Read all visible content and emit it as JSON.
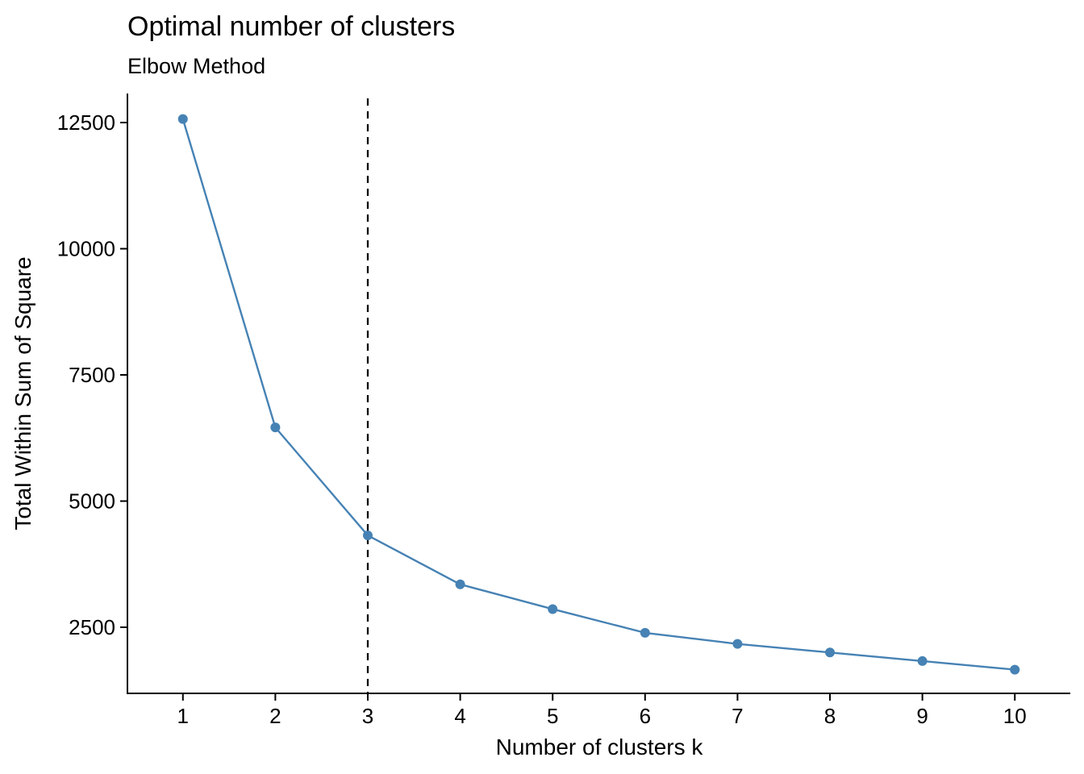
{
  "chart_data": {
    "type": "line",
    "title": "Optimal number of clusters",
    "subtitle": "Elbow Method",
    "xlabel": "Number of clusters k",
    "ylabel": "Total Within Sum of Square",
    "x": [
      1,
      2,
      3,
      4,
      5,
      6,
      7,
      8,
      9,
      10
    ],
    "x_tick_labels": [
      "1",
      "2",
      "3",
      "4",
      "5",
      "6",
      "7",
      "8",
      "9",
      "10"
    ],
    "values": [
      12570,
      6460,
      4320,
      3350,
      2860,
      2390,
      2170,
      2000,
      1830,
      1660
    ],
    "y_ticks": [
      2500,
      5000,
      7500,
      10000,
      12500
    ],
    "y_tick_labels": [
      "2500",
      "5000",
      "7500",
      "10000",
      "12500"
    ],
    "xlim": [
      0.4,
      10.6
    ],
    "ylim": [
      1190,
      13075
    ],
    "reference_line": {
      "x": 3,
      "style": "dashed",
      "color": "#000000"
    },
    "series_color": "#4682B4",
    "grid": false,
    "legend": "none"
  }
}
